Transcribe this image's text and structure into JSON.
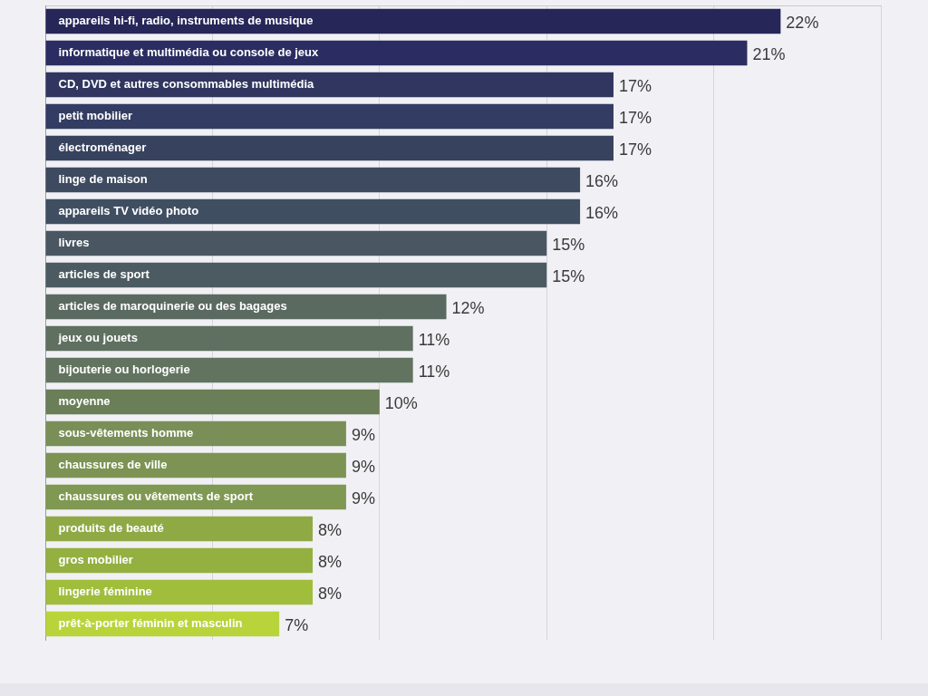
{
  "chart_data": {
    "type": "bar",
    "orientation": "horizontal",
    "categories": [
      "appareils hi-fi, radio, instruments de musique",
      "informatique et multimédia ou console de jeux",
      "CD, DVD et autres consommables multimédia",
      "petit mobilier",
      "électroménager",
      "linge de maison",
      "appareils TV vidéo photo",
      "livres",
      "articles de sport",
      "articles de maroquinerie ou des bagages",
      "jeux ou jouets",
      "bijouterie ou horlogerie",
      "moyenne",
      "sous-vêtements homme",
      "chaussures de ville",
      "chaussures ou vêtements de sport",
      "produits de beauté",
      "gros mobilier",
      "lingerie féminine",
      "prêt-à-porter féminin et masculin"
    ],
    "values": [
      22,
      21,
      17,
      17,
      17,
      16,
      16,
      15,
      15,
      12,
      11,
      11,
      10,
      9,
      9,
      9,
      8,
      8,
      8,
      7
    ],
    "value_labels": [
      "22%",
      "21%",
      "17%",
      "17%",
      "17%",
      "16%",
      "16%",
      "15%",
      "15%",
      "12%",
      "11%",
      "11%",
      "10%",
      "9%",
      "9%",
      "9%",
      "8%",
      "8%",
      "8%",
      "7%"
    ],
    "colors": [
      "#262659",
      "#2b2d62",
      "#30365f",
      "#333c62",
      "#37425f",
      "#3e4a5f",
      "#404e62",
      "#4a5762",
      "#4c5b62",
      "#5b6a60",
      "#5f7060",
      "#627460",
      "#6a7e58",
      "#7a8f58",
      "#7c9354",
      "#7f9852",
      "#8faa45",
      "#93b040",
      "#a0bd3c",
      "#b8d43a"
    ],
    "xlim": [
      0,
      25
    ],
    "xticks": [
      0,
      5,
      10,
      15,
      20,
      25
    ],
    "grid": true,
    "data_labels": true,
    "tick_labels": false
  }
}
